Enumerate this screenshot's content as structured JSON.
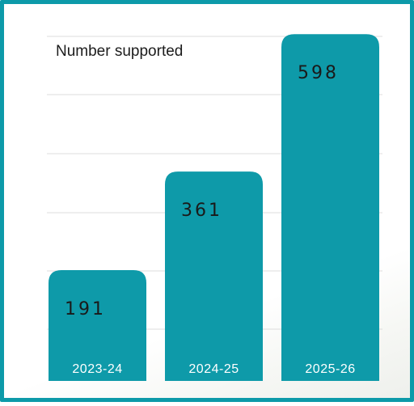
{
  "chart_data": {
    "type": "bar",
    "title": "Number supported",
    "categories": [
      "2023-24",
      "2024-25",
      "2025-26"
    ],
    "values": [
      191,
      361,
      598
    ],
    "xlabel": "",
    "ylabel": "",
    "ylim": [
      0,
      650
    ],
    "grid": true,
    "bar_color": "#0e9aa9",
    "label_color": "#ffffff",
    "value_color": "#1a1a1a"
  }
}
